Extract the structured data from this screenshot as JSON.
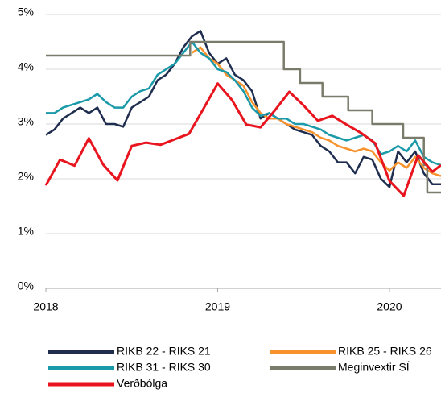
{
  "chart_data": {
    "type": "line",
    "xlim": [
      2018,
      2020.3
    ],
    "xticks": [
      2018,
      2019,
      2020
    ],
    "ylim": [
      0,
      5
    ],
    "yticks": [
      {
        "value": 0,
        "label": "0%"
      },
      {
        "value": 1,
        "label": "1%"
      },
      {
        "value": 2,
        "label": "2%"
      },
      {
        "value": 3,
        "label": "3%"
      },
      {
        "value": 4,
        "label": "4%"
      },
      {
        "value": 5,
        "label": "5%"
      }
    ],
    "grid": true,
    "legend": "bottom",
    "series": [
      {
        "name": "RIKB 22 - RIKS 21",
        "color": "#1f2d4e",
        "x": [
          2018,
          2018.05,
          2018.1,
          2018.15,
          2018.2,
          2018.25,
          2018.3,
          2018.35,
          2018.4,
          2018.45,
          2018.5,
          2018.55,
          2018.6,
          2018.65,
          2018.7,
          2018.75,
          2018.8,
          2018.85,
          2018.9,
          2018.95,
          2019,
          2019.05,
          2019.1,
          2019.15,
          2019.2,
          2019.25,
          2019.3,
          2019.35,
          2019.4,
          2019.45,
          2019.5,
          2019.55,
          2019.6,
          2019.65,
          2019.7,
          2019.75,
          2019.8,
          2019.85,
          2019.9,
          2019.95,
          2020,
          2020.05,
          2020.1,
          2020.15,
          2020.2,
          2020.25,
          2020.3
        ],
        "values": [
          2.8,
          2.9,
          3.1,
          3.2,
          3.3,
          3.2,
          3.3,
          3.0,
          3.0,
          2.95,
          3.3,
          3.4,
          3.5,
          3.8,
          3.9,
          4.1,
          4.4,
          4.6,
          4.7,
          4.3,
          4.1,
          4.2,
          3.9,
          3.8,
          3.6,
          3.1,
          3.2,
          3.1,
          3.0,
          2.9,
          2.85,
          2.8,
          2.6,
          2.5,
          2.3,
          2.3,
          2.1,
          2.4,
          2.35,
          2.0,
          1.85,
          2.5,
          2.3,
          2.5,
          2.1,
          1.9,
          1.9
        ]
      },
      {
        "name": "RIKB 25 - RIKS 26",
        "color": "#f7922d",
        "x": [
          2018.85,
          2018.9,
          2018.95,
          2019,
          2019.05,
          2019.1,
          2019.15,
          2019.2,
          2019.25,
          2019.3,
          2019.35,
          2019.4,
          2019.45,
          2019.5,
          2019.55,
          2019.6,
          2019.65,
          2019.7,
          2019.75,
          2019.8,
          2019.85,
          2019.9,
          2019.95,
          2020,
          2020.05,
          2020.1,
          2020.15,
          2020.2,
          2020.25,
          2020.3
        ],
        "values": [
          4.3,
          4.4,
          4.2,
          4.1,
          3.9,
          3.8,
          3.7,
          3.4,
          3.2,
          3.1,
          3.1,
          3.0,
          2.95,
          2.9,
          2.85,
          2.75,
          2.7,
          2.6,
          2.55,
          2.5,
          2.55,
          2.5,
          2.3,
          2.15,
          2.3,
          2.2,
          2.4,
          2.2,
          2.1,
          2.05
        ]
      },
      {
        "name": "RIKB 31 - RIKS 30",
        "color": "#1a9aa8",
        "x": [
          2018,
          2018.05,
          2018.1,
          2018.15,
          2018.2,
          2018.25,
          2018.3,
          2018.35,
          2018.4,
          2018.45,
          2018.5,
          2018.55,
          2018.6,
          2018.65,
          2018.7,
          2018.75,
          2018.8,
          2018.85,
          2018.9,
          2018.95,
          2019,
          2019.05,
          2019.1,
          2019.15,
          2019.2,
          2019.25,
          2019.3,
          2019.35,
          2019.4,
          2019.45,
          2019.5,
          2019.55,
          2019.6,
          2019.65,
          2019.7,
          2019.75,
          2019.8,
          2019.85,
          2019.9,
          2019.95,
          2020,
          2020.05,
          2020.1,
          2020.15,
          2020.2,
          2020.25,
          2020.3
        ],
        "values": [
          3.2,
          3.2,
          3.3,
          3.35,
          3.4,
          3.45,
          3.55,
          3.4,
          3.3,
          3.3,
          3.5,
          3.6,
          3.65,
          3.9,
          4.0,
          4.1,
          4.3,
          4.5,
          4.3,
          4.2,
          4.0,
          3.95,
          3.8,
          3.6,
          3.3,
          3.15,
          3.2,
          3.1,
          3.1,
          3.0,
          3.0,
          2.95,
          2.9,
          2.8,
          2.75,
          2.7,
          2.75,
          2.8,
          2.7,
          2.45,
          2.5,
          2.6,
          2.5,
          2.7,
          2.4,
          2.3,
          2.25
        ]
      },
      {
        "name": "Meginvextir SÍ",
        "color": "#7b7b6b",
        "x": [
          2018,
          2018.84,
          2018.84,
          2019.385,
          2019.385,
          2019.48,
          2019.48,
          2019.61,
          2019.61,
          2019.76,
          2019.76,
          2019.9,
          2019.9,
          2020.08,
          2020.08,
          2020.2,
          2020.2,
          2020.22,
          2020.22,
          2020.3
        ],
        "values": [
          4.25,
          4.25,
          4.5,
          4.5,
          4.0,
          4.0,
          3.75,
          3.75,
          3.5,
          3.5,
          3.25,
          3.25,
          3.0,
          3.0,
          2.75,
          2.75,
          2.25,
          2.25,
          1.75,
          1.75
        ]
      },
      {
        "name": "Verðbólga",
        "color": "#e8141e",
        "x": [
          2018,
          2018.083,
          2018.167,
          2018.25,
          2018.333,
          2018.417,
          2018.5,
          2018.583,
          2018.667,
          2018.75,
          2018.833,
          2018.917,
          2019,
          2019.083,
          2019.167,
          2019.25,
          2019.333,
          2019.417,
          2019.5,
          2019.583,
          2019.667,
          2019.75,
          2019.833,
          2019.917,
          2020,
          2020.083,
          2020.167,
          2020.25,
          2020.3
        ],
        "values": [
          1.88,
          2.35,
          2.24,
          2.74,
          2.26,
          1.97,
          2.6,
          2.66,
          2.62,
          2.72,
          2.82,
          3.28,
          3.74,
          3.44,
          2.99,
          2.94,
          3.25,
          3.59,
          3.34,
          3.06,
          3.15,
          2.99,
          2.84,
          2.65,
          1.96,
          1.69,
          2.43,
          2.13,
          2.25
        ]
      }
    ]
  }
}
